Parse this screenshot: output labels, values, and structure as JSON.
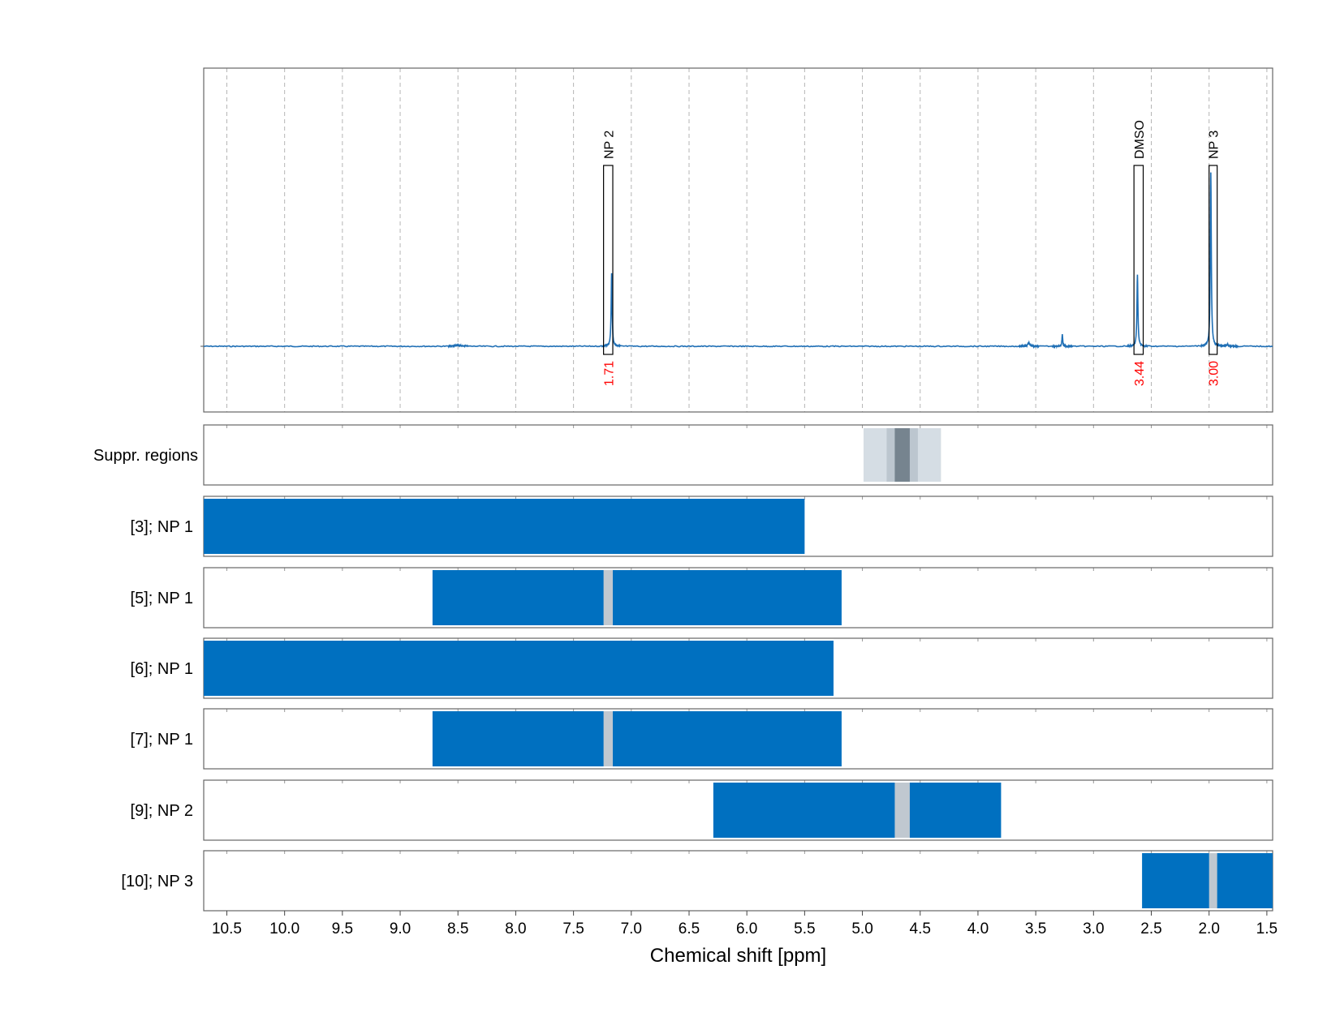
{
  "chart_data": {
    "type": "line",
    "xlabel": "Chemical shift [ppm]",
    "xlim": [
      10.7,
      1.45
    ],
    "x_ticks": [
      10.5,
      10.0,
      9.5,
      9.0,
      8.5,
      8.0,
      7.5,
      7.0,
      6.5,
      6.0,
      5.5,
      5.0,
      4.5,
      4.0,
      3.5,
      3.0,
      2.5,
      2.0,
      1.5
    ],
    "x_tick_labels": [
      "10.5",
      "10.0",
      "9.5",
      "9.0",
      "8.5",
      "8.0",
      "7.5",
      "7.0",
      "6.5",
      "6.0",
      "5.5",
      "5.0",
      "4.5",
      "4.0",
      "3.5",
      "3.0",
      "2.5",
      "2.0",
      "1.5"
    ],
    "grid": "vertical dashed",
    "colors": {
      "spectrum": "#1f6fb5",
      "bar": "#0070c0",
      "gap": "#c0c8d0",
      "annotation": "#ff0000",
      "suppr_light": "#d5dde4",
      "suppr_mid": "#bcc6cf",
      "suppr_dark": "#76848f"
    },
    "spectrum": {
      "baseline": 0,
      "ylim": [
        -0.38,
        1.55
      ],
      "peaks": [
        {
          "x": 8.5,
          "height": 0.006,
          "width": 0.03
        },
        {
          "x": 7.17,
          "height": 0.42,
          "width": 0.005
        },
        {
          "x": 3.56,
          "height": 0.02,
          "width": 0.01
        },
        {
          "x": 3.27,
          "height": 0.07,
          "width": 0.004
        },
        {
          "x": 2.62,
          "height": 0.41,
          "width": 0.005
        },
        {
          "x": 1.985,
          "height": 1.0,
          "width": 0.005
        },
        {
          "x": 1.84,
          "height": 0.01,
          "width": 0.005
        }
      ],
      "annotations": [
        {
          "label": "NP 2",
          "x_from": 7.24,
          "x_to": 7.16,
          "integral": "1.71"
        },
        {
          "label": "DMSO",
          "x_from": 2.65,
          "x_to": 2.57,
          "integral": "3.44"
        },
        {
          "label": "NP 3",
          "x_from": 2.0,
          "x_to": 1.93,
          "integral": "3.00"
        }
      ]
    },
    "suppression": {
      "label": "Suppr. regions",
      "regions": [
        {
          "from": 4.99,
          "to": 4.32,
          "level": "light"
        },
        {
          "from": 4.79,
          "to": 4.52,
          "level": "mid"
        },
        {
          "from": 4.72,
          "to": 4.59,
          "level": "dark"
        }
      ]
    },
    "rows": [
      {
        "label": "[3]; NP 1",
        "bars": [
          {
            "from": 10.7,
            "to": 5.5
          }
        ],
        "gaps": []
      },
      {
        "label": "[5]; NP 1",
        "bars": [
          {
            "from": 8.72,
            "to": 5.18
          }
        ],
        "gaps": [
          {
            "from": 7.24,
            "to": 7.16
          }
        ]
      },
      {
        "label": "[6]; NP 1",
        "bars": [
          {
            "from": 10.7,
            "to": 5.25
          }
        ],
        "gaps": []
      },
      {
        "label": "[7]; NP 1",
        "bars": [
          {
            "from": 8.72,
            "to": 5.18
          }
        ],
        "gaps": [
          {
            "from": 7.24,
            "to": 7.16
          }
        ]
      },
      {
        "label": "[9]; NP 2",
        "bars": [
          {
            "from": 6.29,
            "to": 3.8
          }
        ],
        "gaps": [
          {
            "from": 4.72,
            "to": 4.59
          }
        ]
      },
      {
        "label": "[10]; NP 3",
        "bars": [
          {
            "from": 2.58,
            "to": 1.45
          }
        ],
        "gaps": [
          {
            "from": 2.0,
            "to": 1.93
          }
        ]
      }
    ]
  }
}
